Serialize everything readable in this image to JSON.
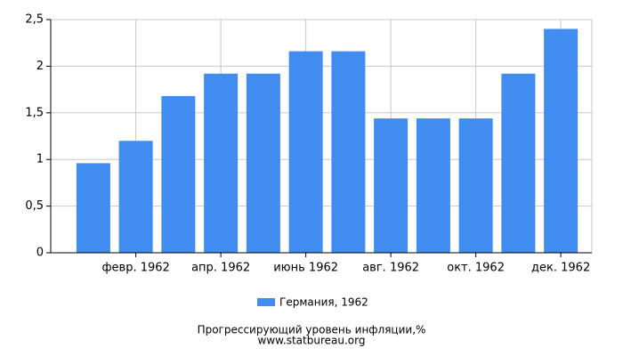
{
  "chart_data": {
    "type": "bar",
    "title": "Прогрессирующий уровень инфляции,%",
    "subtitle": "www.statbureau.org",
    "categories": [
      null,
      "февр. 1962",
      null,
      "апр. 1962",
      null,
      "июнь 1962",
      null,
      "авг. 1962",
      null,
      "окт. 1962",
      null,
      "дек. 1962"
    ],
    "series": [
      {
        "name": "Германия, 1962",
        "color": "#418cf0",
        "values": [
          0.96,
          1.2,
          1.68,
          1.92,
          1.92,
          2.16,
          2.16,
          1.44,
          1.44,
          1.44,
          1.92,
          2.4
        ]
      }
    ],
    "ylim": [
      0,
      2.5
    ],
    "yticks": [
      0,
      {
        "value": 0.5,
        "label": "0,5"
      },
      1,
      {
        "value": 1.5,
        "label": "1,5"
      },
      2,
      {
        "value": 2.5,
        "label": "2,5"
      }
    ],
    "grid": true
  }
}
